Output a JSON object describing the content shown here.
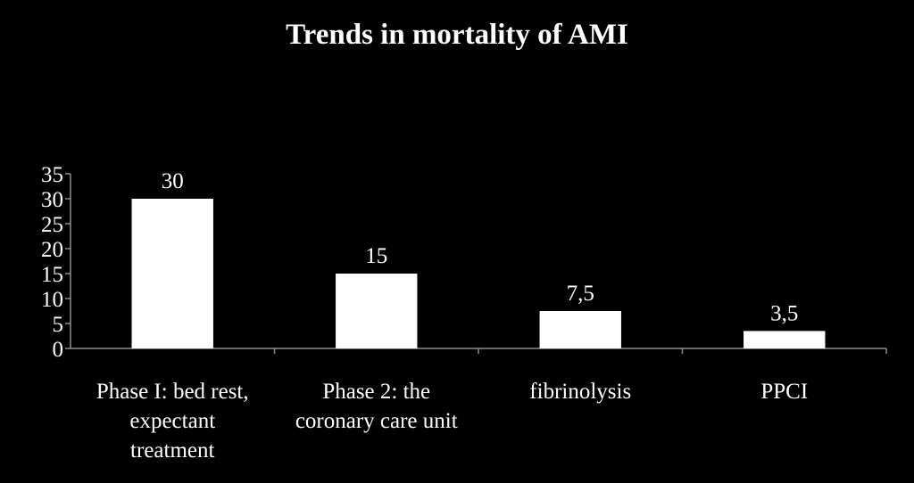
{
  "colors": {
    "background": "#000000",
    "bar_fill": "#ffffff",
    "axis": "#8c8c8c",
    "text": "#ffffff"
  },
  "chart_data": {
    "type": "bar",
    "title": "Trends in mortality of AMI",
    "xlabel": "",
    "ylabel": "",
    "ylim": [
      0,
      35
    ],
    "yticks": [
      0,
      5,
      10,
      15,
      20,
      25,
      30,
      35
    ],
    "grid": false,
    "legend": "none",
    "categories": [
      [
        "Phase I: bed rest,",
        "expectant",
        "treatment"
      ],
      [
        "Phase 2: the",
        "coronary care unit"
      ],
      [
        "fibrinolysis"
      ],
      [
        "PPCI"
      ]
    ],
    "values": [
      30,
      15,
      7.5,
      3.5
    ],
    "data_labels": [
      "30",
      "15",
      "7,5",
      "3,5"
    ]
  }
}
